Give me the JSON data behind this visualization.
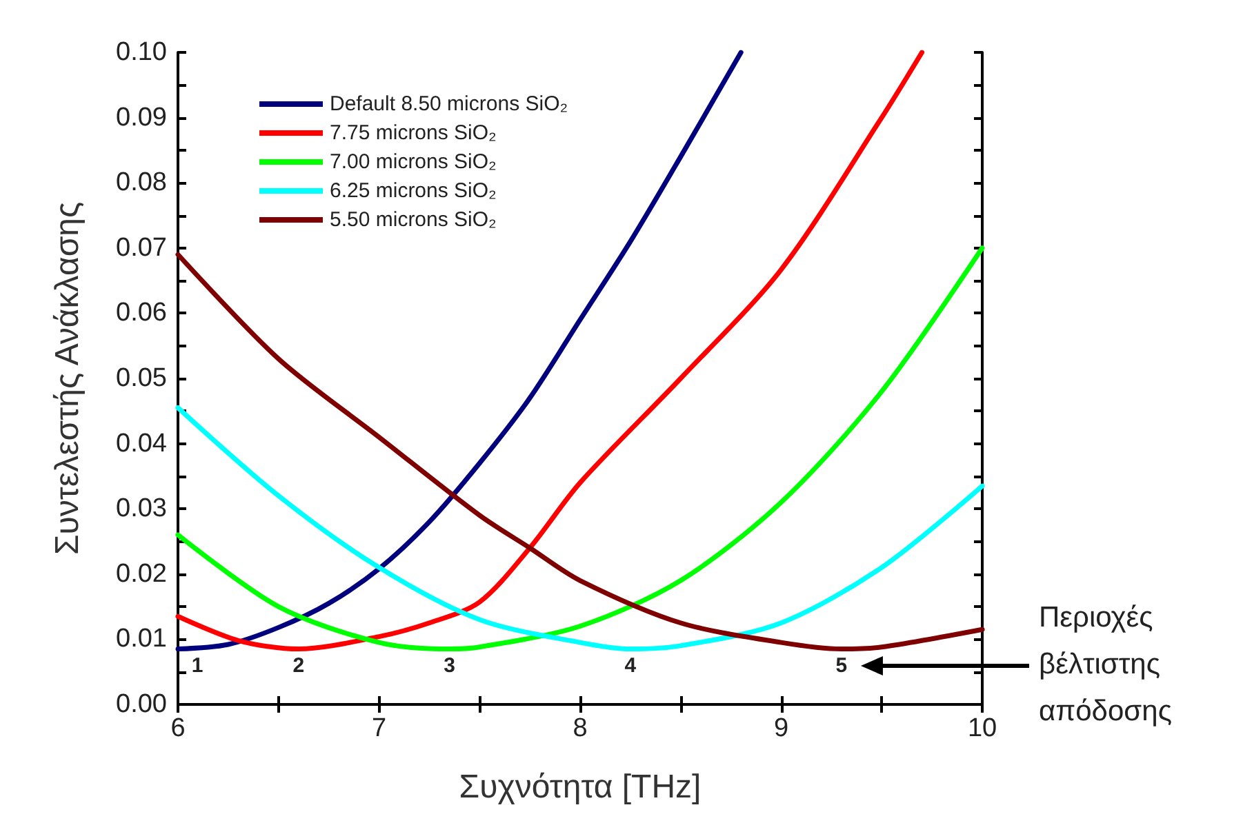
{
  "chart_data": {
    "type": "line",
    "xlabel": "Συχνότητα [THz]",
    "ylabel": "Συντελεστής Ανάκλασης",
    "xlim": [
      6,
      10
    ],
    "ylim": [
      0,
      0.1
    ],
    "xticks": [
      6,
      {
        "value": 6.5,
        "label": null
      },
      7,
      {
        "value": 7.5,
        "label": null
      },
      8,
      {
        "value": 8.5,
        "label": null
      },
      9,
      {
        "value": 9.5,
        "label": null
      },
      10
    ],
    "yticks": [
      {
        "value": 0,
        "label": "0.00"
      },
      {
        "value": 0.005,
        "label": null
      },
      {
        "value": 0.01,
        "label": "0.01"
      },
      {
        "value": 0.015,
        "label": null
      },
      {
        "value": 0.02,
        "label": "0.02"
      },
      {
        "value": 0.025,
        "label": null
      },
      {
        "value": 0.03,
        "label": "0.03"
      },
      {
        "value": 0.035,
        "label": null
      },
      {
        "value": 0.04,
        "label": "0.04"
      },
      {
        "value": 0.045,
        "label": null
      },
      {
        "value": 0.05,
        "label": "0.05"
      },
      {
        "value": 0.055,
        "label": null
      },
      {
        "value": 0.06,
        "label": "0.06"
      },
      {
        "value": 0.065,
        "label": null
      },
      {
        "value": 0.07,
        "label": "0.07"
      },
      {
        "value": 0.075,
        "label": null
      },
      {
        "value": 0.08,
        "label": "0.08"
      },
      {
        "value": 0.085,
        "label": null
      },
      {
        "value": 0.09,
        "label": "0.09"
      },
      {
        "value": 0.095,
        "label": null
      },
      {
        "value": 0.1,
        "label": "0.10"
      }
    ],
    "grid": false,
    "legend": "top left",
    "marker": "none",
    "line_style": "solid",
    "series": [
      {
        "name": "Default 8.50 microns SiO₂",
        "color": "#00007f",
        "x": [
          6,
          6.25,
          6.5,
          6.75,
          7,
          7.25,
          7.5,
          7.75,
          8,
          8.25,
          8.5,
          8.8
        ],
        "values": [
          0.0085,
          0.0092,
          0.0118,
          0.0155,
          0.0208,
          0.028,
          0.037,
          0.047,
          0.059,
          0.071,
          0.084,
          0.1
        ]
      },
      {
        "name": "7.75 microns SiO₂",
        "color": "#ff0000",
        "x": [
          6,
          6.3,
          6.6,
          7,
          7.25,
          7.5,
          7.75,
          8,
          8.5,
          9,
          9.5,
          9.7
        ],
        "values": [
          0.0135,
          0.0098,
          0.0085,
          0.0104,
          0.0125,
          0.0157,
          0.024,
          0.034,
          0.05,
          0.0667,
          0.09,
          0.1
        ]
      },
      {
        "name": "7.00 microns SiO₂",
        "color": "#00ff00",
        "x": [
          6,
          6.5,
          7,
          7.35,
          7.5,
          8,
          8.5,
          9,
          9.5,
          10
        ],
        "values": [
          0.026,
          0.015,
          0.0095,
          0.0085,
          0.0088,
          0.012,
          0.019,
          0.031,
          0.048,
          0.07
        ]
      },
      {
        "name": "6.25 microns SiO₂",
        "color": "#00ffff",
        "x": [
          6,
          6.5,
          7,
          7.5,
          8,
          8.25,
          8.5,
          9,
          9.5,
          10
        ],
        "values": [
          0.0455,
          0.032,
          0.021,
          0.013,
          0.0095,
          0.0085,
          0.009,
          0.0125,
          0.021,
          0.0335
        ]
      },
      {
        "name": "5.50 microns SiO₂",
        "color": "#7f0000",
        "x": [
          6,
          6.5,
          7,
          7.5,
          7.75,
          8,
          8.5,
          9,
          9.3,
          9.5,
          10
        ],
        "values": [
          0.069,
          0.053,
          0.041,
          0.029,
          0.024,
          0.019,
          0.0125,
          0.0095,
          0.0085,
          0.0088,
          0.0115
        ]
      }
    ],
    "annotations": [
      "1",
      "2",
      "3",
      "4",
      "5",
      "Περιοχές βέλτιστης απόδοσης"
    ]
  }
}
